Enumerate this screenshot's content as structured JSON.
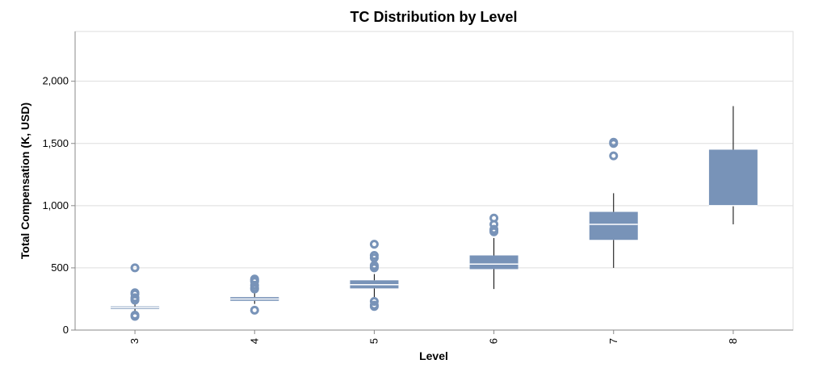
{
  "chart_data": {
    "type": "boxplot",
    "title": "TC Distribution by Level",
    "xlabel": "Level",
    "ylabel": "Total Compensation (K, USD)",
    "ylim": [
      0,
      2400
    ],
    "yticks": [
      0,
      500,
      1000,
      1500,
      2000
    ],
    "ytick_labels": [
      "0",
      "500",
      "1,000",
      "1,500",
      "2,000"
    ],
    "grid": true,
    "box_color": "#7893b8",
    "categories": [
      "3",
      "4",
      "5",
      "6",
      "7",
      "8"
    ],
    "boxes": [
      {
        "level": "3",
        "whisker_low": 140,
        "q1": 170,
        "median": 180,
        "q3": 190,
        "whisker_high": 220,
        "outliers": [
          110,
          120,
          240,
          250,
          260,
          290,
          300,
          500
        ]
      },
      {
        "level": "4",
        "whisker_low": 210,
        "q1": 235,
        "median": 250,
        "q3": 265,
        "whisker_high": 295,
        "outliers": [
          160,
          330,
          340,
          360,
          390,
          400,
          410
        ]
      },
      {
        "level": "5",
        "whisker_low": 260,
        "q1": 335,
        "median": 365,
        "q3": 400,
        "whisker_high": 450,
        "outliers": [
          190,
          200,
          230,
          500,
          510,
          520,
          580,
          600,
          690
        ]
      },
      {
        "level": "6",
        "whisker_low": 330,
        "q1": 490,
        "median": 530,
        "q3": 600,
        "whisker_high": 740,
        "outliers": [
          790,
          800,
          810,
          850,
          900
        ]
      },
      {
        "level": "7",
        "whisker_low": 500,
        "q1": 725,
        "median": 850,
        "q3": 950,
        "whisker_high": 1100,
        "outliers": [
          1400,
          1500,
          1510
        ]
      },
      {
        "level": "8",
        "whisker_low": 850,
        "q1": 1000,
        "median": 1000,
        "q3": 1450,
        "whisker_high": 1800,
        "outliers": []
      }
    ]
  }
}
